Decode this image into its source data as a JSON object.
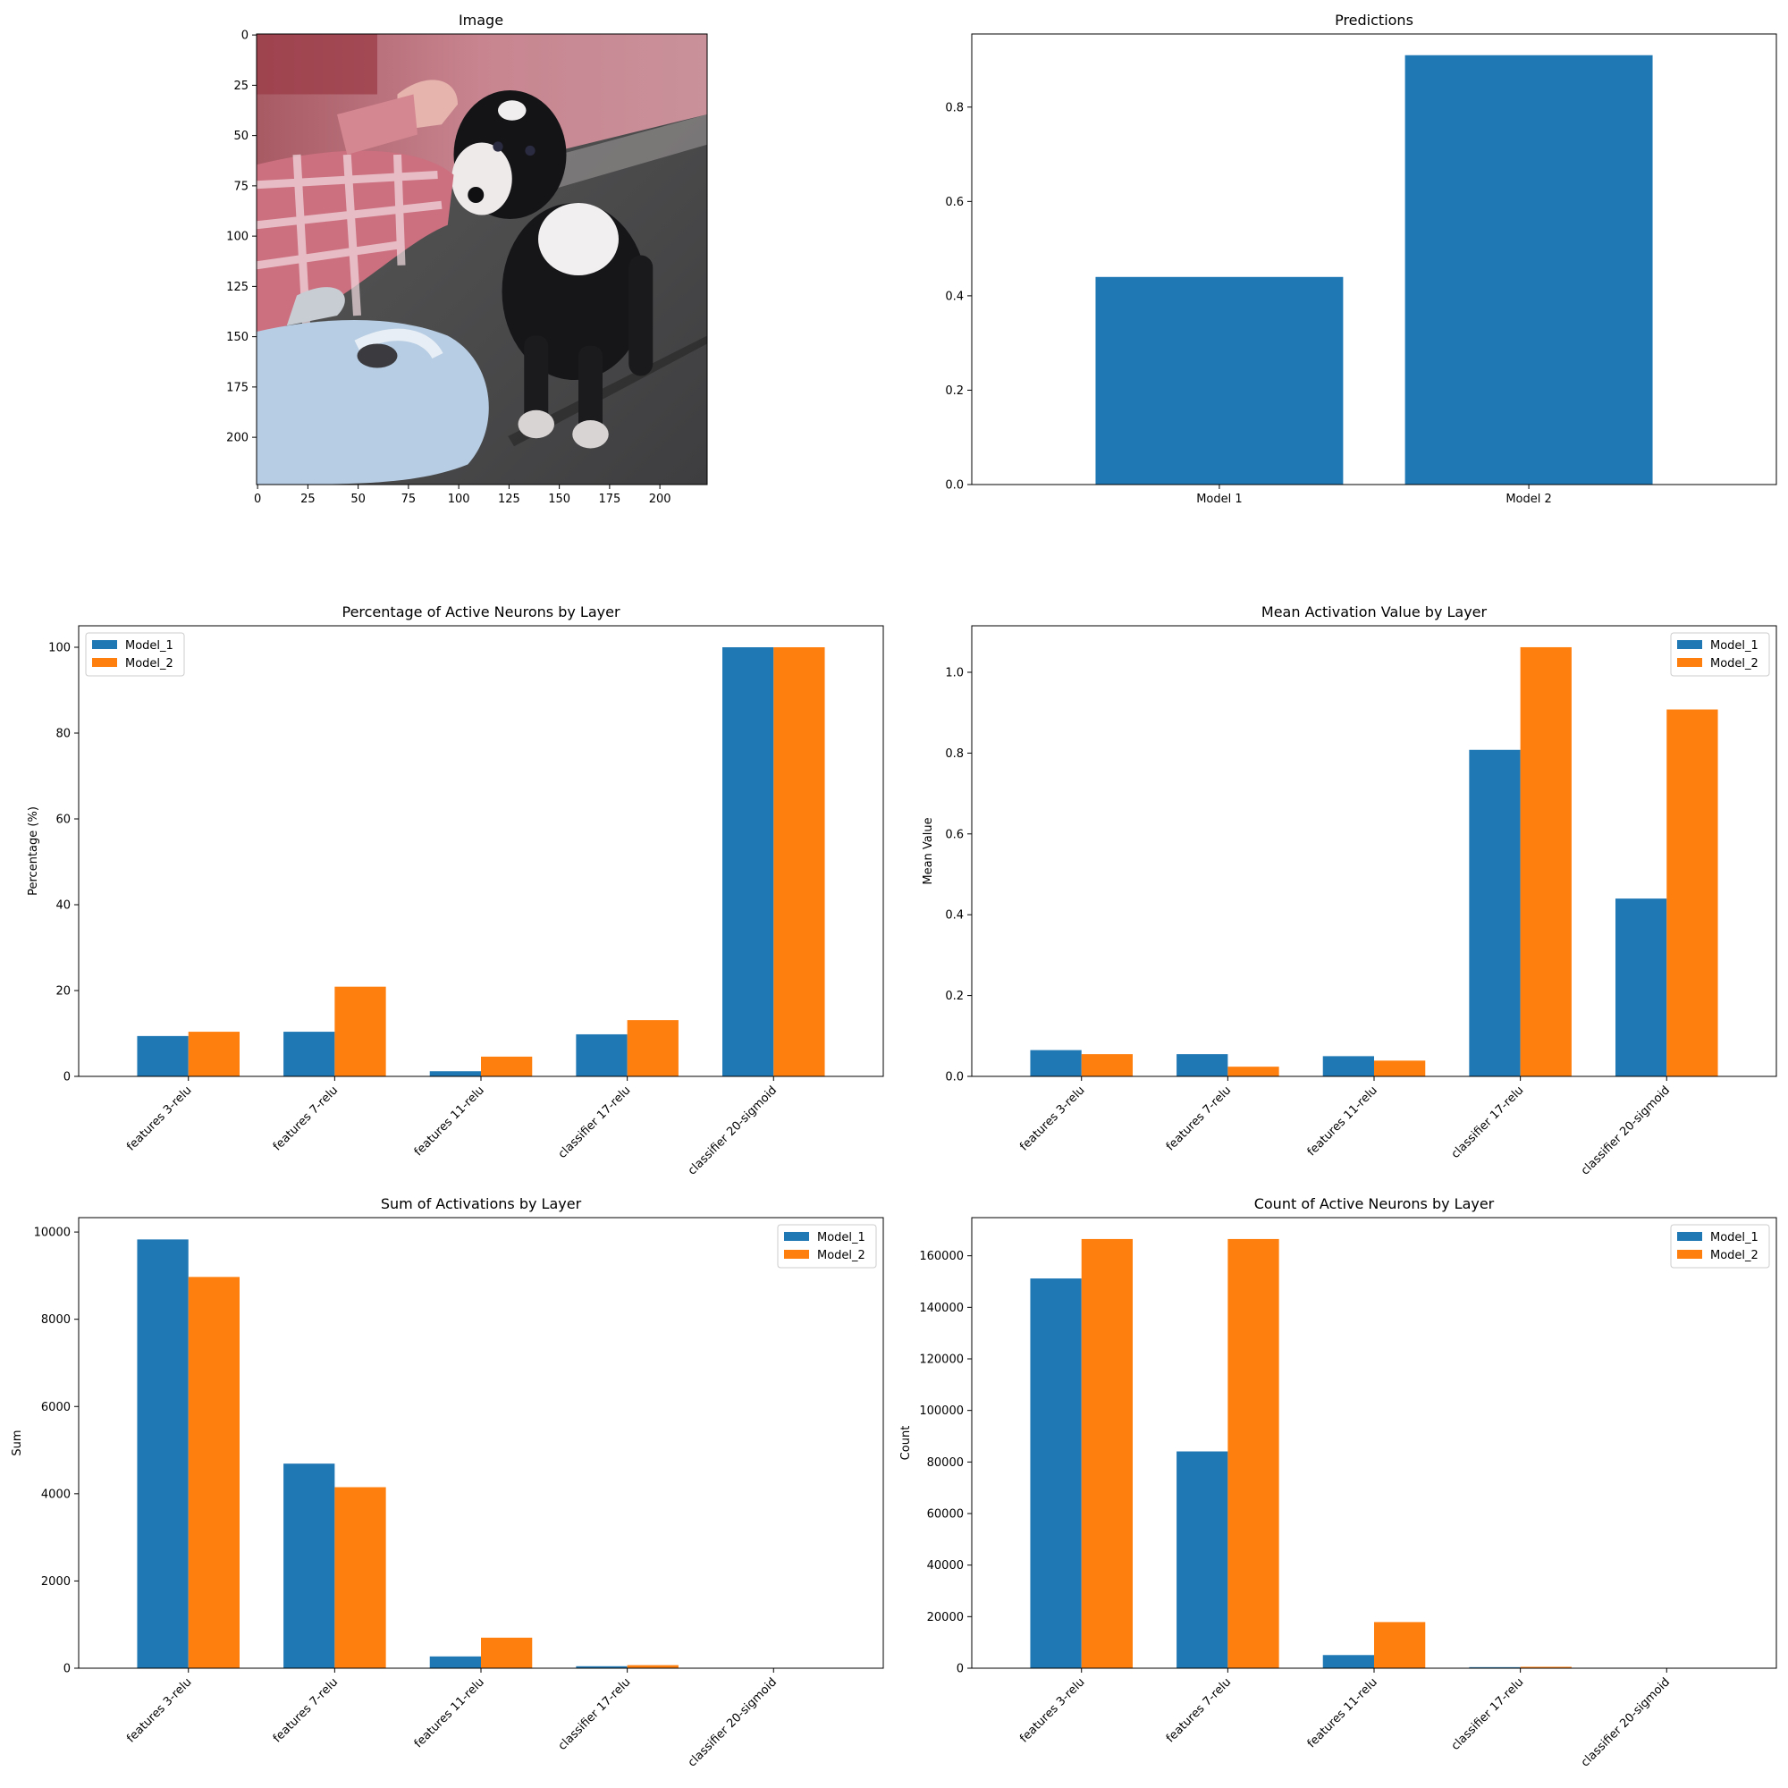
{
  "colors": {
    "model1": "#1f77b4",
    "model2": "#ff7f0e"
  },
  "image_panel": {
    "title": "Image",
    "xticks": [
      0,
      25,
      50,
      75,
      100,
      125,
      150,
      175,
      200
    ],
    "yticks": [
      0,
      25,
      50,
      75,
      100,
      125,
      150,
      175,
      200
    ],
    "extent": [
      0,
      224
    ]
  },
  "chart_data": [
    {
      "type": "bar",
      "title": "Predictions",
      "categories": [
        "Model 1",
        "Model 2"
      ],
      "values": [
        0.44,
        0.91
      ],
      "ylim": [
        0,
        0.955
      ],
      "yticks": [
        0.0,
        0.2,
        0.4,
        0.6,
        0.8
      ],
      "ytick_labels": [
        "0.0",
        "0.2",
        "0.4",
        "0.6",
        "0.8"
      ],
      "xlabel": "",
      "ylabel": ""
    },
    {
      "type": "bar",
      "title": "Percentage of Active Neurons by Layer",
      "categories": [
        "features 3-relu",
        "features 7-relu",
        "features 11-relu",
        "classifier 17-relu",
        "classifier 20-sigmoid"
      ],
      "series": [
        {
          "name": "Model_1",
          "values": [
            9.4,
            10.4,
            1.2,
            9.8,
            100
          ]
        },
        {
          "name": "Model_2",
          "values": [
            10.4,
            20.9,
            4.6,
            13.1,
            100
          ]
        }
      ],
      "ylim": [
        0,
        105
      ],
      "yticks": [
        0,
        20,
        40,
        60,
        80,
        100
      ],
      "ytick_labels": [
        "0",
        "20",
        "40",
        "60",
        "80",
        "100"
      ],
      "xlabel": "",
      "ylabel": "Percentage (%)",
      "legend": "upper-left"
    },
    {
      "type": "bar",
      "title": "Mean Activation Value by Layer",
      "categories": [
        "features 3-relu",
        "features 7-relu",
        "features 11-relu",
        "classifier 17-relu",
        "classifier 20-sigmoid"
      ],
      "series": [
        {
          "name": "Model_1",
          "values": [
            0.065,
            0.055,
            0.05,
            0.808,
            0.44
          ]
        },
        {
          "name": "Model_2",
          "values": [
            0.055,
            0.024,
            0.039,
            1.062,
            0.908
          ]
        }
      ],
      "ylim": [
        0,
        1.115
      ],
      "yticks": [
        0.0,
        0.2,
        0.4,
        0.6,
        0.8,
        1.0
      ],
      "ytick_labels": [
        "0.0",
        "0.2",
        "0.4",
        "0.6",
        "0.8",
        "1.0"
      ],
      "xlabel": "",
      "ylabel": "Mean Value",
      "legend": "upper-right"
    },
    {
      "type": "bar",
      "title": "Sum of Activations by Layer",
      "categories": [
        "features 3-relu",
        "features 7-relu",
        "features 11-relu",
        "classifier 17-relu",
        "classifier 20-sigmoid"
      ],
      "series": [
        {
          "name": "Model_1",
          "values": [
            9830,
            4690,
            270,
            45,
            0.44
          ]
        },
        {
          "name": "Model_2",
          "values": [
            8970,
            4150,
            700,
            70,
            0.91
          ]
        }
      ],
      "ylim": [
        0,
        10330
      ],
      "yticks": [
        0,
        2000,
        4000,
        6000,
        8000,
        10000
      ],
      "ytick_labels": [
        "0",
        "2000",
        "4000",
        "6000",
        "8000",
        "10000"
      ],
      "xlabel": "",
      "ylabel": "Sum",
      "legend": "upper-right"
    },
    {
      "type": "bar",
      "title": "Count of Active Neurons by Layer",
      "categories": [
        "features 3-relu",
        "features 7-relu",
        "features 11-relu",
        "classifier 17-relu",
        "classifier 20-sigmoid"
      ],
      "series": [
        {
          "name": "Model_1",
          "values": [
            151200,
            84100,
            5100,
            400,
            1
          ]
        },
        {
          "name": "Model_2",
          "values": [
            166500,
            166500,
            17900,
            540,
            1
          ]
        }
      ],
      "ylim": [
        0,
        174800
      ],
      "yticks": [
        0,
        20000,
        40000,
        60000,
        80000,
        100000,
        120000,
        140000,
        160000
      ],
      "ytick_labels": [
        "0",
        "20000",
        "40000",
        "60000",
        "80000",
        "100000",
        "120000",
        "140000",
        "160000"
      ],
      "xlabel": "",
      "ylabel": "Count",
      "legend": "upper-right"
    }
  ]
}
